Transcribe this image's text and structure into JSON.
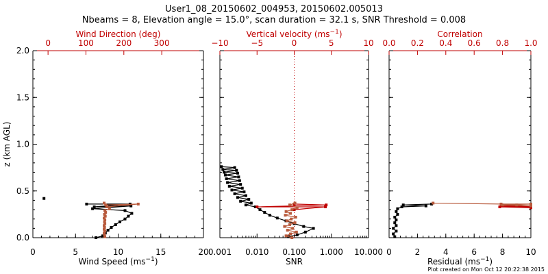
{
  "title_line1": "User1_08_20150602_004953, 20150602.005013",
  "title_line2": "Nbeams = 8, Elevation angle = 15.0°, scan duration = 32.1 s, SNR Threshold = 0.008",
  "footer": "Plot created on Mon Oct 12 20:22:38 2015",
  "colors": {
    "black": "#000000",
    "red": "#c00000",
    "brown": "#b85a3c"
  },
  "chart_data": [
    {
      "type": "line",
      "ylabel": "z (km AGL)",
      "ylabel_unit": "",
      "ylim": [
        0,
        2.0
      ],
      "yticks": [
        "0.0",
        "0.5",
        "1.0",
        "1.5",
        "2.0"
      ],
      "xlabel": "Wind Speed (ms",
      "xlabel_sup": "−1",
      "xlabel_end": ")",
      "xlim": [
        0,
        20
      ],
      "xticks": [
        "0",
        "5",
        "10",
        "15",
        "20"
      ],
      "top_label": "Wind Direction (deg)",
      "top_lim": [
        -40,
        410
      ],
      "top_ticks": [
        "0",
        "100",
        "200",
        "300"
      ],
      "series": [
        {
          "color": "#000000",
          "axis": "bottom",
          "points": [
            [
              1.3,
              0.42
            ],
            [
              6.3,
              0.36
            ],
            [
              11.4,
              0.36
            ],
            [
              7.2,
              0.33
            ],
            [
              11.5,
              0.34
            ],
            [
              7.0,
              0.31
            ],
            [
              10.8,
              0.29
            ],
            [
              11.6,
              0.26
            ],
            [
              11.2,
              0.23
            ],
            [
              10.8,
              0.2
            ],
            [
              10.2,
              0.17
            ],
            [
              9.7,
              0.14
            ],
            [
              9.2,
              0.11
            ],
            [
              8.8,
              0.08
            ],
            [
              8.5,
              0.05
            ],
            [
              8.2,
              0.02
            ],
            [
              7.4,
              0.0
            ]
          ]
        },
        {
          "color": "#b85a3c",
          "axis": "top",
          "points": [
            [
              148,
              0.37
            ],
            [
              152,
              0.35
            ],
            [
              238,
              0.36
            ],
            [
              155,
              0.33
            ],
            [
              162,
              0.31
            ],
            [
              150,
              0.29
            ],
            [
              152,
              0.27
            ],
            [
              149,
              0.25
            ],
            [
              151,
              0.23
            ],
            [
              148,
              0.21
            ],
            [
              150,
              0.19
            ],
            [
              149,
              0.17
            ],
            [
              150,
              0.15
            ],
            [
              148,
              0.13
            ],
            [
              149,
              0.11
            ],
            [
              148,
              0.09
            ],
            [
              150,
              0.07
            ],
            [
              148,
              0.05
            ],
            [
              149,
              0.03
            ],
            [
              150,
              0.01
            ]
          ]
        }
      ]
    },
    {
      "type": "line",
      "xlabel": "SNR",
      "xscale": "log",
      "xlim": [
        0.001,
        10.0
      ],
      "xticks": [
        "0.001",
        "0.010",
        "0.100",
        "1.000",
        "10.000"
      ],
      "top_label": "Vertical velocity (ms",
      "top_label_sup": "−1",
      "top_label_end": ")",
      "top_lim": [
        -10,
        10
      ],
      "top_ticks": [
        "−10",
        "−5",
        "0",
        "5",
        "10"
      ],
      "reference_line": 0,
      "series": [
        {
          "color": "#000000",
          "axis": "bottom",
          "points": [
            [
              0.0011,
              0.76
            ],
            [
              0.0025,
              0.75
            ],
            [
              0.0012,
              0.73
            ],
            [
              0.0028,
              0.72
            ],
            [
              0.0013,
              0.7
            ],
            [
              0.003,
              0.69
            ],
            [
              0.0014,
              0.67
            ],
            [
              0.0032,
              0.65
            ],
            [
              0.0015,
              0.63
            ],
            [
              0.0034,
              0.61
            ],
            [
              0.0016,
              0.59
            ],
            [
              0.0036,
              0.57
            ],
            [
              0.0018,
              0.55
            ],
            [
              0.004,
              0.53
            ],
            [
              0.0021,
              0.51
            ],
            [
              0.0045,
              0.49
            ],
            [
              0.0025,
              0.47
            ],
            [
              0.005,
              0.45
            ],
            [
              0.003,
              0.43
            ],
            [
              0.006,
              0.41
            ],
            [
              0.0036,
              0.39
            ],
            [
              0.007,
              0.37
            ],
            [
              0.005,
              0.35
            ],
            [
              0.009,
              0.33
            ],
            [
              0.012,
              0.3
            ],
            [
              0.016,
              0.27
            ],
            [
              0.022,
              0.24
            ],
            [
              0.035,
              0.21
            ],
            [
              0.06,
              0.18
            ],
            [
              0.1,
              0.15
            ],
            [
              0.18,
              0.12
            ],
            [
              0.33,
              0.1
            ],
            [
              0.2,
              0.06
            ],
            [
              0.12,
              0.03
            ],
            [
              0.07,
              0.01
            ]
          ]
        },
        {
          "color": "#c00000",
          "axis": "top",
          "points": [
            [
              0,
              0.36
            ],
            [
              4.3,
              0.35
            ],
            [
              -5,
              0.33
            ],
            [
              4.2,
              0.33
            ],
            [
              0,
              0.3
            ]
          ]
        },
        {
          "color": "#b85a3c",
          "axis": "top",
          "points": [
            [
              0.1,
              0.37
            ],
            [
              -0.6,
              0.35
            ],
            [
              0.4,
              0.32
            ],
            [
              -0.3,
              0.3
            ],
            [
              -1.1,
              0.28
            ],
            [
              -0.5,
              0.26
            ],
            [
              -1.2,
              0.24
            ],
            [
              0.2,
              0.22
            ],
            [
              -0.4,
              0.2
            ],
            [
              -1.0,
              0.18
            ],
            [
              0.1,
              0.16
            ],
            [
              -0.6,
              0.14
            ],
            [
              -1.3,
              0.12
            ],
            [
              -0.2,
              0.1
            ],
            [
              -0.9,
              0.08
            ],
            [
              0.3,
              0.06
            ],
            [
              -0.5,
              0.04
            ],
            [
              -1.1,
              0.02
            ],
            [
              -0.3,
              0.0
            ]
          ]
        }
      ]
    },
    {
      "type": "line",
      "xlabel": "Residual (ms",
      "xlabel_sup": "−1",
      "xlabel_end": ")",
      "xlim": [
        0,
        10
      ],
      "xticks": [
        "0",
        "2",
        "4",
        "6",
        "8",
        "10"
      ],
      "top_label": "Correlation",
      "top_lim": [
        0,
        1.0
      ],
      "top_ticks": [
        "0.0",
        "0.2",
        "0.4",
        "0.6",
        "0.8",
        "1.0"
      ],
      "series": [
        {
          "color": "#000000",
          "axis": "bottom",
          "points": [
            [
              3.0,
              0.36
            ],
            [
              1.0,
              0.35
            ],
            [
              2.6,
              0.34
            ],
            [
              0.9,
              0.33
            ],
            [
              0.6,
              0.31
            ],
            [
              0.5,
              0.28
            ],
            [
              0.6,
              0.25
            ],
            [
              0.4,
              0.22
            ],
            [
              0.5,
              0.19
            ],
            [
              0.4,
              0.16
            ],
            [
              0.5,
              0.13
            ],
            [
              0.3,
              0.1
            ],
            [
              0.5,
              0.07
            ],
            [
              0.3,
              0.04
            ],
            [
              0.4,
              0.01
            ]
          ]
        },
        {
          "color": "#c00000",
          "axis": "top",
          "points": [
            [
              1.0,
              0.34
            ],
            [
              0.8,
              0.34
            ],
            [
              1.0,
              0.33
            ],
            [
              0.78,
              0.33
            ],
            [
              1.0,
              0.32
            ]
          ]
        },
        {
          "color": "#b85a3c",
          "axis": "top",
          "points": [
            [
              0.31,
              0.37
            ],
            [
              0.79,
              0.36
            ],
            [
              1.0,
              0.36
            ],
            [
              0.8,
              0.35
            ],
            [
              1.0,
              0.34
            ],
            [
              0.9,
              0.35
            ]
          ]
        }
      ]
    }
  ]
}
